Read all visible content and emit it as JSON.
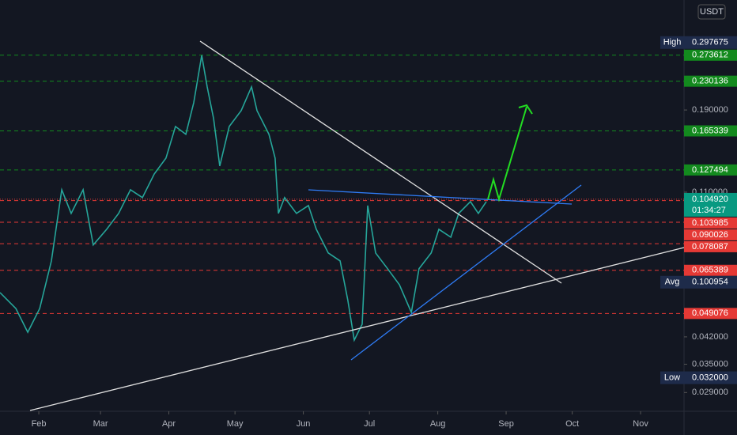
{
  "chart_data": {
    "type": "line",
    "currency": "USDT",
    "log_scale": true,
    "grid": false,
    "color": "#26a69a",
    "x": [
      13.4,
      20.6,
      26,
      31.4,
      36.7,
      41.4,
      45.7,
      51.1,
      55.7,
      61.8,
      67.2,
      72.6,
      78,
      83.4,
      88.7,
      93,
      97.7,
      101.3,
      104.9,
      107.4,
      110.3,
      113.1,
      117.4,
      122.8,
      127.5,
      130,
      135.4,
      138.2,
      139.7,
      142.5,
      147.9,
      153.3,
      156.9,
      162.3,
      167.7,
      171.2,
      174.1,
      177.7,
      180.2,
      183.8,
      189.2,
      194.6,
      200,
      203.5,
      209,
      212.5,
      217.9,
      221.5,
      226.8,
      230.4,
      234
    ],
    "values": [
      0.0564,
      0.0507,
      0.0433,
      0.0507,
      0.0696,
      0.1118,
      0.0955,
      0.1118,
      0.0774,
      0.0859,
      0.0955,
      0.1118,
      0.1061,
      0.1242,
      0.138,
      0.1703,
      0.1616,
      0.1995,
      0.2734,
      0.2216,
      0.1795,
      0.1309,
      0.1703,
      0.1893,
      0.2216,
      0.1893,
      0.1616,
      0.138,
      0.0955,
      0.1061,
      0.0955,
      0.1006,
      0.0859,
      0.0734,
      0.0696,
      0.0535,
      0.0411,
      0.0457,
      0.1006,
      0.0734,
      0.0661,
      0.0594,
      0.0494,
      0.0661,
      0.0734,
      0.0859,
      0.0815,
      0.0955,
      0.1033,
      0.0955,
      0.1033
    ],
    "xlim": [
      13.4,
      323.7
    ],
    "ylim": [
      0.0256,
      0.395
    ],
    "xticks": [
      {
        "value": 31,
        "label": "Feb"
      },
      {
        "value": 59,
        "label": "Mar"
      },
      {
        "value": 90,
        "label": "Apr"
      },
      {
        "value": 120,
        "label": "May"
      },
      {
        "value": 151,
        "label": "Jun"
      },
      {
        "value": 181,
        "label": "Jul"
      },
      {
        "value": 212,
        "label": "Aug"
      },
      {
        "value": 243,
        "label": "Sep"
      },
      {
        "value": 273,
        "label": "Oct"
      },
      {
        "value": 304,
        "label": "Nov"
      }
    ],
    "yticks": [
      {
        "value": 0.19,
        "label": "0.190000"
      },
      {
        "value": 0.11,
        "label": "0.110000"
      },
      {
        "value": 0.042,
        "label": "0.042000"
      },
      {
        "value": 0.035,
        "label": "0.035000"
      },
      {
        "value": 0.029,
        "label": "0.029000"
      }
    ],
    "levels": [
      {
        "value": 0.273612,
        "label": "0.273612",
        "color": "#138a1e"
      },
      {
        "value": 0.230136,
        "label": "0.230136",
        "color": "#138a1e"
      },
      {
        "value": 0.165339,
        "label": "0.165339",
        "color": "#138a1e"
      },
      {
        "value": 0.127494,
        "label": "0.127494",
        "color": "#138a1e"
      },
      {
        "value": 0.103985,
        "label": "0.103985",
        "color": "#e53935"
      },
      {
        "value": 0.090026,
        "label": "0.090026",
        "color": "#e53935"
      },
      {
        "value": 0.078087,
        "label": "0.078087",
        "color": "#e53935"
      },
      {
        "value": 0.065389,
        "label": "0.065389",
        "color": "#e53935"
      },
      {
        "value": 0.049076,
        "label": "0.049076",
        "color": "#e53935"
      }
    ],
    "stats": [
      {
        "name": "High",
        "value": 0.297675,
        "label": "0.297675"
      },
      {
        "name": "Avg",
        "value": 0.100954,
        "label": "0.100954"
      },
      {
        "name": "Low",
        "value": 0.032,
        "label": "0.032000"
      }
    ],
    "current": {
      "value": 0.10492,
      "label": "0.104920",
      "countdown": "01:34:27"
    }
  }
}
